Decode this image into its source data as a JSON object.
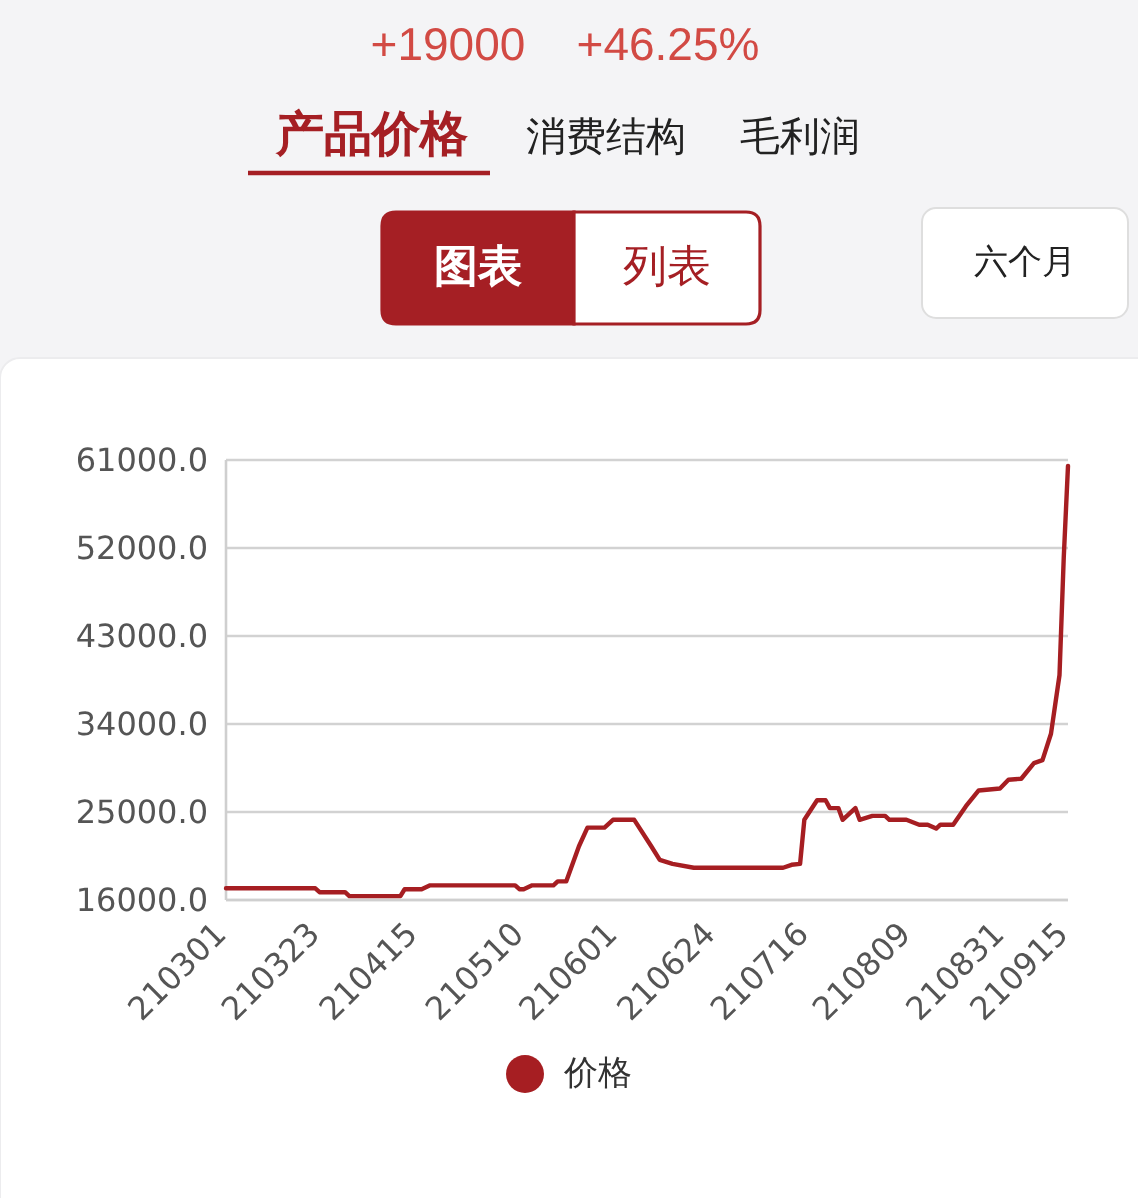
{
  "chart_data": {
    "type": "line",
    "annotations": [
      "+19000",
      "+46.25%",
      "产品价格",
      "消费结构",
      "毛利润",
      "图表",
      "列表",
      "六个月"
    ],
    "x": [
      "--03-01",
      "--03-22",
      "--03-23",
      "--03-29",
      "--03-30",
      "--04-11",
      "--04-12",
      "--04-16",
      "--04-18",
      "--05-08",
      "--05-09",
      "--05-10",
      "--05-12",
      "--05-17",
      "--05-18",
      "--05-20",
      "--05-23",
      "--05-25",
      "--05-29",
      "--05-31",
      "--06-05",
      "--06-09",
      "--06-11",
      "--06-14",
      "--06-19",
      "--07-10",
      "--07-12",
      "--07-14",
      "--07-15",
      "--07-18",
      "--07-20",
      "--07-21",
      "--07-23",
      "--07-24",
      "--07-27",
      "--07-28",
      "--07-31",
      "--08-03",
      "--08-04",
      "--08-08",
      "--08-11",
      "--08-13",
      "--08-15",
      "--08-16",
      "--08-19",
      "--08-22",
      "--08-25",
      "--08-30",
      "--09-01",
      "--09-04",
      "--09-07",
      "--09-09",
      "--09-11",
      "--09-12",
      "--09-13",
      "--09-14",
      "--09-15"
    ],
    "series": [
      {
        "name": "价格",
        "color": "#a61e22",
        "values": [
          17200,
          17200,
          16800,
          16800,
          16400,
          16400,
          17100,
          17100,
          17500,
          17500,
          17100,
          17100,
          17500,
          17500,
          17900,
          17900,
          21500,
          23400,
          23400,
          24200,
          24200,
          21500,
          20100,
          19700,
          19300,
          19300,
          19600,
          19700,
          24200,
          26200,
          26200,
          25400,
          25400,
          24200,
          25400,
          24200,
          24600,
          24600,
          24200,
          24200,
          23700,
          23700,
          23300,
          23700,
          23700,
          25600,
          27200,
          27400,
          28300,
          28400,
          30000,
          30300,
          33000,
          36000,
          39000,
          51000,
          60400
        ]
      }
    ],
    "xlim": [
      "--03-01",
      "--09-15"
    ],
    "xticks": [
      {
        "value": "--03-01",
        "label": "210301"
      },
      {
        "value": "--03-23",
        "label": "210323"
      },
      {
        "value": "--04-15",
        "label": "210415"
      },
      {
        "value": "--05-10",
        "label": "210510"
      },
      {
        "value": "--06-01",
        "label": "210601"
      },
      {
        "value": "--06-24",
        "label": "210624"
      },
      {
        "value": "--07-16",
        "label": "210716"
      },
      {
        "value": "--08-09",
        "label": "210809"
      },
      {
        "value": "--08-31",
        "label": "210831"
      },
      {
        "value": "--09-15",
        "label": "210915"
      }
    ],
    "ylim": [
      16000,
      61000
    ],
    "yticks": [
      {
        "value": 16000,
        "label": "16000.0"
      },
      {
        "value": 25000,
        "label": "25000.0"
      },
      {
        "value": 34000,
        "label": "34000.0"
      },
      {
        "value": 43000,
        "label": "43000.0"
      },
      {
        "value": 52000,
        "label": "52000.0"
      },
      {
        "value": 61000,
        "label": "61000.0"
      }
    ],
    "grid": "y",
    "legend": "bottom"
  }
}
